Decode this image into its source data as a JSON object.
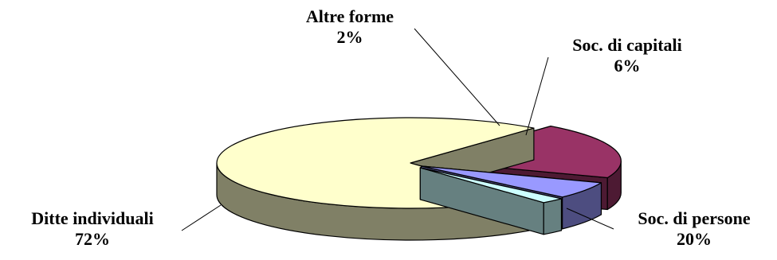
{
  "chart_data": {
    "type": "pie",
    "style": "3d-exploded",
    "slices": [
      {
        "label": "Ditte individuali",
        "pct_label": "72%",
        "value": 72,
        "top_color": "#FFFFCC",
        "side_color": "#808066"
      },
      {
        "label": "Soc. di persone",
        "pct_label": "20%",
        "value": 20,
        "top_color": "#993366",
        "side_color": "#4D1A33"
      },
      {
        "label": "Soc. di capitali",
        "pct_label": "6%",
        "value": 6,
        "top_color": "#9999FF",
        "side_color": "#4D4D80"
      },
      {
        "label": "Altre forme",
        "pct_label": "2%",
        "value": 2,
        "top_color": "#CCFFFF",
        "side_color": "#668080"
      }
    ]
  }
}
